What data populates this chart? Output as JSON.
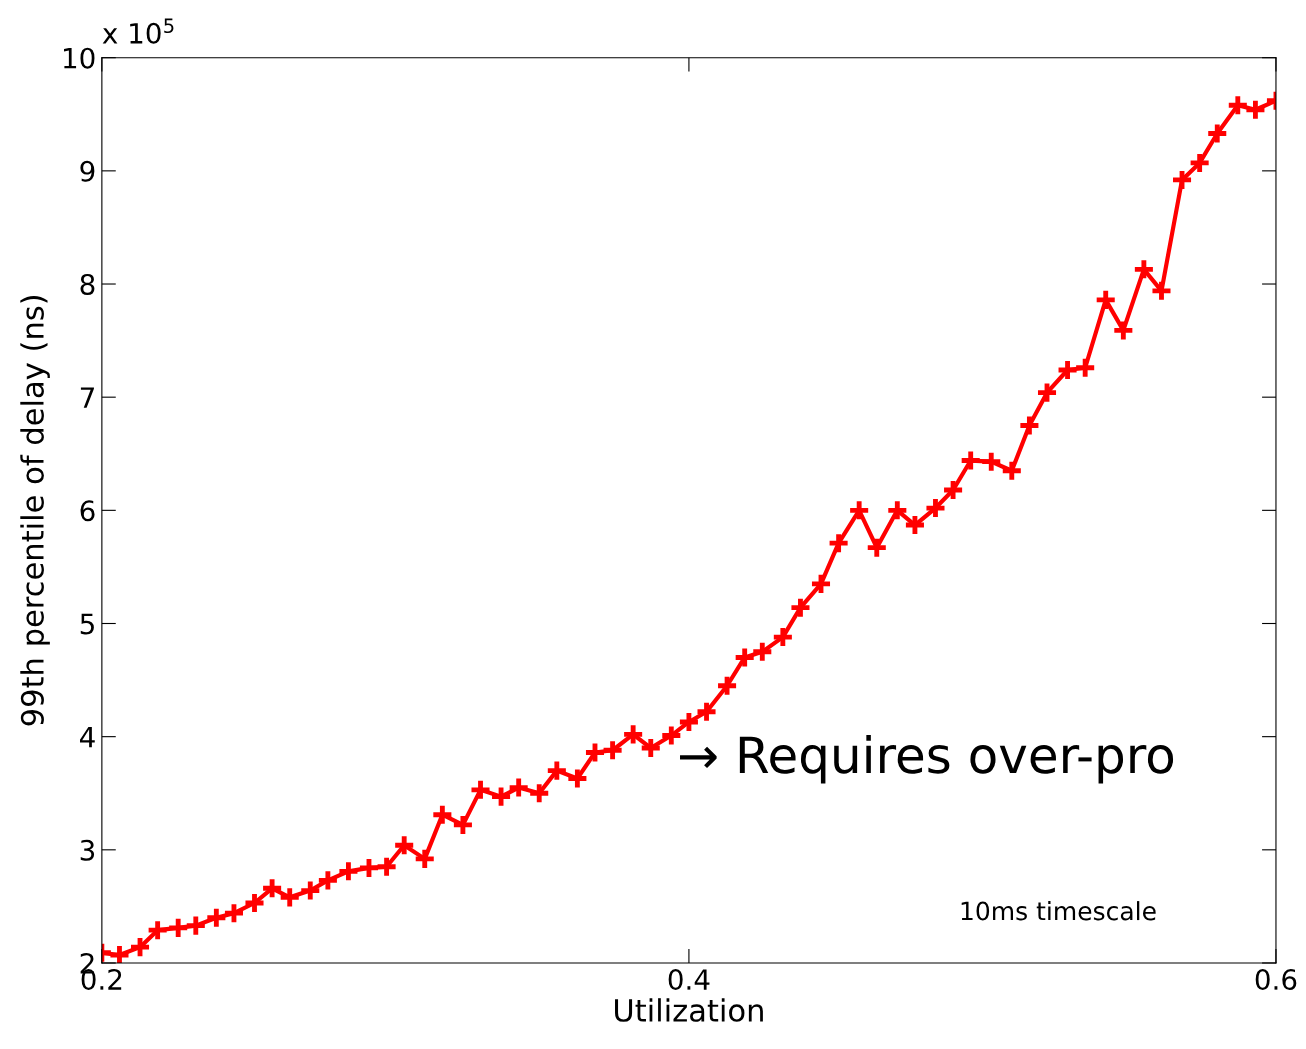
{
  "chart_data": {
    "type": "line",
    "xlabel": "Utilization",
    "ylabel": "99th percentile of delay (ns)",
    "xlim": [
      0.2,
      0.6
    ],
    "xticks": [
      0.2,
      0.4,
      0.6
    ],
    "ylim": [
      2,
      10
    ],
    "yticks": [
      2,
      3,
      4,
      5,
      6,
      7,
      8,
      9,
      10
    ],
    "grid": false,
    "marker": "cross",
    "line_style": "solid",
    "annotations": [
      "x 10$^{5}$",
      "→ Requires over-pro",
      "10ms timescale"
    ],
    "series": [
      {
        "color": "#ff0000",
        "x": [
          0.2,
          0.206,
          0.213,
          0.219,
          0.226,
          0.232,
          0.239,
          0.245,
          0.252,
          0.258,
          0.264,
          0.271,
          0.277,
          0.284,
          0.291,
          0.297,
          0.303,
          0.31,
          0.316,
          0.323,
          0.329,
          0.336,
          0.342,
          0.349,
          0.355,
          0.362,
          0.368,
          0.374,
          0.381,
          0.387,
          0.394,
          0.4,
          0.406,
          0.413,
          0.419,
          0.425,
          0.432,
          0.438,
          0.445,
          0.451,
          0.458,
          0.464,
          0.471,
          0.477,
          0.484,
          0.49,
          0.496,
          0.503,
          0.51,
          0.516,
          0.522,
          0.529,
          0.535,
          0.542,
          0.548,
          0.555,
          0.561,
          0.568,
          0.574,
          0.58,
          0.587,
          0.593,
          0.6
        ],
        "values": [
          2.09,
          2.07,
          2.14,
          2.29,
          2.31,
          2.33,
          2.4,
          2.44,
          2.53,
          2.66,
          2.58,
          2.64,
          2.73,
          2.81,
          2.84,
          2.85,
          3.04,
          2.92,
          3.31,
          3.22,
          3.53,
          3.47,
          3.55,
          3.5,
          3.7,
          3.63,
          3.86,
          3.88,
          4.02,
          3.9,
          4.01,
          4.13,
          4.22,
          4.45,
          4.7,
          4.75,
          4.88,
          5.14,
          5.35,
          5.71,
          6.0,
          5.67,
          6.0,
          5.87,
          6.02,
          6.18,
          6.44,
          6.43,
          6.35,
          6.75,
          7.04,
          7.24,
          7.26,
          7.86,
          7.59,
          8.13,
          7.94,
          8.92,
          9.07,
          9.33,
          9.58,
          9.54,
          9.62
        ]
      }
    ]
  }
}
